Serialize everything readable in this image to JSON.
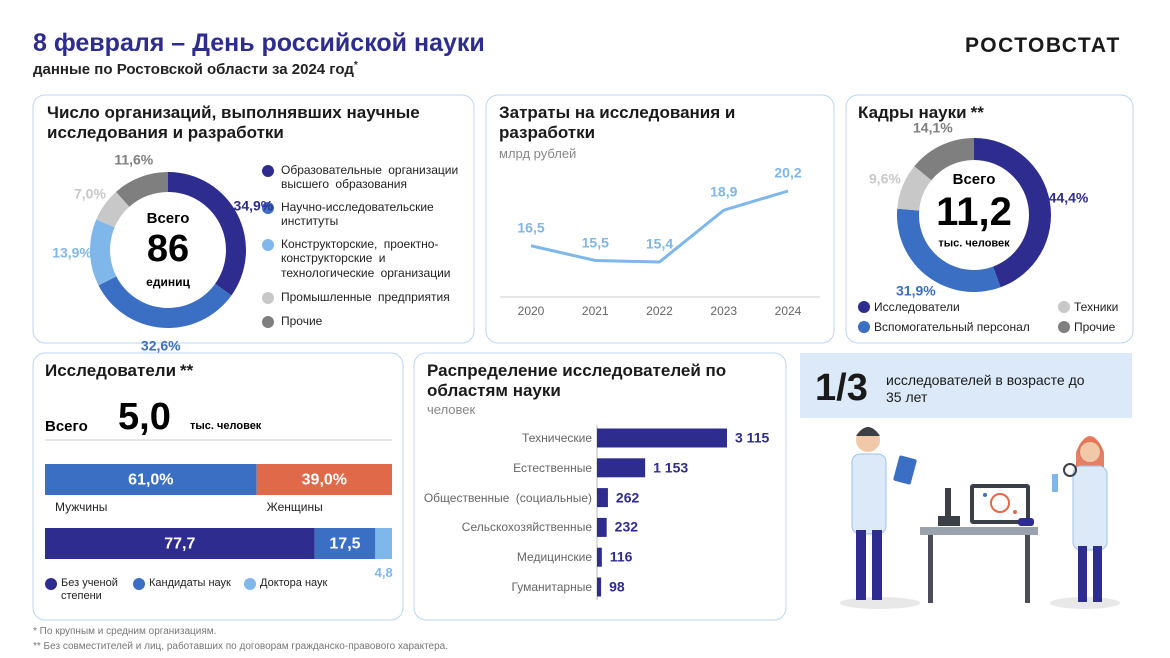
{
  "header": {
    "title": "8 февраля – День российской науки",
    "subtitle": "данные по Ростовской области за 2024 год",
    "subtitle_mark": "*",
    "brand": "РОСТОВСТАТ"
  },
  "chart_data": [
    {
      "type": "donut",
      "title": "Число организаций, выполнявших научные исследования и разработки",
      "total_caption": "Всего",
      "total": 86,
      "total_unit": "единиц",
      "categories": [
        "Образовательные организации высшего образования",
        "Научно-исследовательские институты",
        "Конструкторские, проектно-конструкторские и технологические организации",
        "Промышленные предприятия",
        "Прочие"
      ],
      "values": [
        34.9,
        32.6,
        13.9,
        7.0,
        11.6
      ],
      "value_labels": [
        "34,9%",
        "32,6%",
        "13,9%",
        "7,0%",
        "11,6%"
      ],
      "colors": [
        "#2e2d8f",
        "#3a6fc4",
        "#7fb7ea",
        "#c8c8c8",
        "#7f7f7f"
      ]
    },
    {
      "type": "line",
      "title": "Затраты на исследования и разработки",
      "subtitle": "млрд рублей",
      "categories": [
        "2020",
        "2021",
        "2022",
        "2023",
        "2024"
      ],
      "values": [
        16.5,
        15.5,
        15.4,
        18.9,
        20.2
      ],
      "value_labels": [
        "16,5",
        "15,5",
        "15,4",
        "18,9",
        "20,2"
      ],
      "color": "#7fb7ea"
    },
    {
      "type": "donut",
      "title": "Кадры науки",
      "title_mark": "**",
      "total_caption": "Всего",
      "total": 11.2,
      "total_label": "11,2",
      "total_unit": "тыс. человек",
      "categories": [
        "Исследователи",
        "Вспомогательный персонал",
        "Техники",
        "Прочие"
      ],
      "values": [
        44.4,
        31.9,
        9.6,
        14.1
      ],
      "value_labels": [
        "44,4%",
        "31,9%",
        "9,6%",
        "14,1%"
      ],
      "colors": [
        "#2e2d8f",
        "#3a6fc4",
        "#c8c8c8",
        "#7f7f7f"
      ]
    },
    {
      "type": "stacked_bar",
      "title": "Исследователи",
      "title_mark": "**",
      "total_caption": "Всего",
      "total": 5.0,
      "total_label": "5,0",
      "total_unit": "тыс. человек",
      "series": [
        {
          "name": "Мужчины",
          "color": "#3a6fc4",
          "values": [
            61.0
          ],
          "value_labels": [
            "61,0%"
          ]
        },
        {
          "name": "Женщины",
          "color": "#e0694a",
          "values": [
            39.0
          ],
          "value_labels": [
            "39,0%"
          ]
        }
      ]
    },
    {
      "type": "stacked_bar",
      "series": [
        {
          "name": "Без ученой степени",
          "color": "#2e2d8f",
          "values": [
            77.7
          ],
          "value_labels": [
            "77,7"
          ]
        },
        {
          "name": "Кандидаты наук",
          "color": "#3a6fc4",
          "values": [
            17.5
          ],
          "value_labels": [
            "17,5"
          ]
        },
        {
          "name": "Доктора наук",
          "color": "#7fb7ea",
          "values": [
            4.8
          ],
          "value_labels": [
            "4,8"
          ]
        }
      ]
    },
    {
      "type": "hbar",
      "title": "Распределение исследователей по областям науки",
      "subtitle": "человек",
      "categories": [
        "Технические",
        "Естественные",
        "Общественные (социальные)",
        "Сельскохозяйственные",
        "Медицинские",
        "Гуманитарные"
      ],
      "values": [
        3115,
        1153,
        262,
        232,
        116,
        98
      ],
      "value_labels": [
        "3 115",
        "1 153",
        "262",
        "232",
        "116",
        "98"
      ],
      "color": "#2e2d8f"
    }
  ],
  "highlight": {
    "value": "1/3",
    "text": "исследователей в возрасте до 35 лет"
  },
  "footnotes": [
    "* По крупным и средним организациям.",
    "** Без совместителей и лиц, работавших по договорам гражданско-правового характера."
  ]
}
